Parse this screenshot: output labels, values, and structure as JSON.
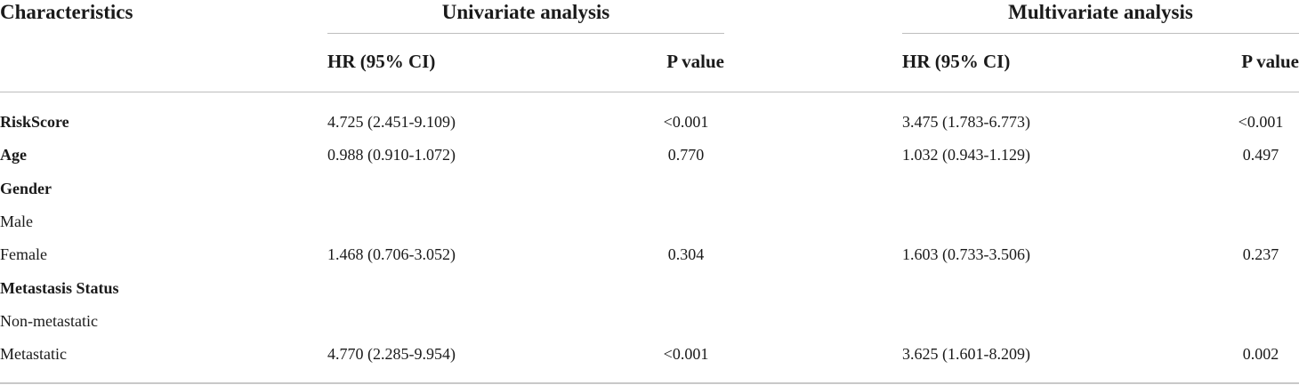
{
  "header": {
    "characteristics": "Characteristics",
    "univariate": "Univariate analysis",
    "multivariate": "Multivariate analysis",
    "hr_label": "HR (95% CI)",
    "p_label": "P value"
  },
  "rows": [
    {
      "label": "RiskScore",
      "bold": true,
      "uni_hr": "4.725 (2.451-9.109)",
      "uni_p": "<0.001",
      "multi_hr": "3.475 (1.783-6.773)",
      "multi_p": "<0.001"
    },
    {
      "label": "Age",
      "bold": true,
      "uni_hr": "0.988 (0.910-1.072)",
      "uni_p": "0.770",
      "multi_hr": "1.032 (0.943-1.129)",
      "multi_p": "0.497"
    },
    {
      "label": "Gender",
      "bold": true,
      "uni_hr": "",
      "uni_p": "",
      "multi_hr": "",
      "multi_p": ""
    },
    {
      "label": "Male",
      "bold": false,
      "uni_hr": "",
      "uni_p": "",
      "multi_hr": "",
      "multi_p": ""
    },
    {
      "label": "Female",
      "bold": false,
      "uni_hr": "1.468 (0.706-3.052)",
      "uni_p": "0.304",
      "multi_hr": "1.603 (0.733-3.506)",
      "multi_p": "0.237"
    },
    {
      "label": "Metastasis Status",
      "bold": true,
      "uni_hr": "",
      "uni_p": "",
      "multi_hr": "",
      "multi_p": ""
    },
    {
      "label": "Non-metastatic",
      "bold": false,
      "uni_hr": "",
      "uni_p": "",
      "multi_hr": "",
      "multi_p": ""
    },
    {
      "label": "Metastatic",
      "bold": false,
      "uni_hr": "4.770 (2.285-9.954)",
      "uni_p": "<0.001",
      "multi_hr": "3.625 (1.601-8.209)",
      "multi_p": "0.002"
    }
  ]
}
